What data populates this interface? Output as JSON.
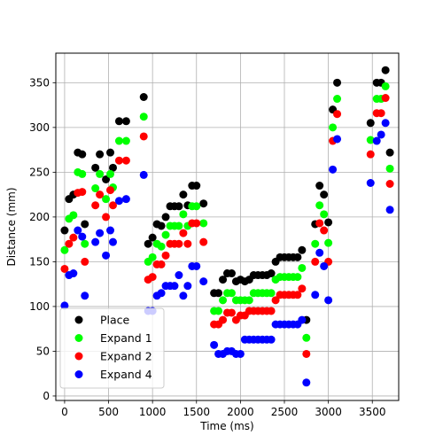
{
  "chart_data": {
    "type": "scatter",
    "xlabel": "Time (ms)",
    "ylabel": "Distance (mm)",
    "xlim": [
      -100,
      3800
    ],
    "ylim": [
      -5,
      383
    ],
    "xticks": [
      0,
      500,
      1000,
      1500,
      2000,
      2500,
      3000,
      3500
    ],
    "yticks": [
      0,
      50,
      100,
      150,
      200,
      250,
      300,
      350
    ],
    "grid": true,
    "legend_position": "lower-left",
    "series": [
      {
        "name": "Place",
        "color": "#000000",
        "points": [
          [
            0,
            185
          ],
          [
            50,
            220
          ],
          [
            100,
            225
          ],
          [
            150,
            272
          ],
          [
            200,
            270
          ],
          [
            230,
            192
          ],
          [
            350,
            255
          ],
          [
            400,
            270
          ],
          [
            470,
            242
          ],
          [
            520,
            272
          ],
          [
            550,
            255
          ],
          [
            620,
            307
          ],
          [
            700,
            307
          ],
          [
            900,
            334
          ],
          [
            950,
            170
          ],
          [
            1000,
            177
          ],
          [
            1050,
            192
          ],
          [
            1100,
            190
          ],
          [
            1150,
            200
          ],
          [
            1200,
            212
          ],
          [
            1250,
            212
          ],
          [
            1300,
            212
          ],
          [
            1350,
            225
          ],
          [
            1400,
            213
          ],
          [
            1450,
            235
          ],
          [
            1500,
            235
          ],
          [
            1580,
            215
          ],
          [
            1700,
            115
          ],
          [
            1750,
            115
          ],
          [
            1800,
            130
          ],
          [
            1850,
            137
          ],
          [
            1900,
            137
          ],
          [
            1950,
            128
          ],
          [
            2000,
            130
          ],
          [
            2050,
            128
          ],
          [
            2100,
            130
          ],
          [
            2150,
            135
          ],
          [
            2200,
            135
          ],
          [
            2250,
            135
          ],
          [
            2300,
            135
          ],
          [
            2350,
            137
          ],
          [
            2400,
            150
          ],
          [
            2450,
            155
          ],
          [
            2500,
            155
          ],
          [
            2550,
            155
          ],
          [
            2600,
            155
          ],
          [
            2650,
            155
          ],
          [
            2700,
            163
          ],
          [
            2750,
            85
          ],
          [
            2850,
            192
          ],
          [
            2900,
            235
          ],
          [
            2950,
            225
          ],
          [
            3000,
            194
          ],
          [
            3050,
            320
          ],
          [
            3100,
            350
          ],
          [
            3480,
            305
          ],
          [
            3550,
            350
          ],
          [
            3600,
            350
          ],
          [
            3650,
            364
          ],
          [
            3700,
            272
          ]
        ]
      },
      {
        "name": "Expand 1",
        "color": "#00ff00",
        "points": [
          [
            0,
            163
          ],
          [
            50,
            198
          ],
          [
            100,
            202
          ],
          [
            150,
            250
          ],
          [
            200,
            248
          ],
          [
            230,
            170
          ],
          [
            350,
            232
          ],
          [
            400,
            248
          ],
          [
            470,
            220
          ],
          [
            520,
            248
          ],
          [
            550,
            233
          ],
          [
            620,
            285
          ],
          [
            700,
            285
          ],
          [
            900,
            312
          ],
          [
            950,
            150
          ],
          [
            1000,
            155
          ],
          [
            1050,
            170
          ],
          [
            1100,
            167
          ],
          [
            1150,
            180
          ],
          [
            1200,
            190
          ],
          [
            1250,
            190
          ],
          [
            1300,
            190
          ],
          [
            1350,
            203
          ],
          [
            1400,
            190
          ],
          [
            1450,
            212
          ],
          [
            1500,
            212
          ],
          [
            1580,
            193
          ],
          [
            1700,
            95
          ],
          [
            1750,
            95
          ],
          [
            1800,
            107
          ],
          [
            1850,
            115
          ],
          [
            1900,
            115
          ],
          [
            1950,
            107
          ],
          [
            2000,
            107
          ],
          [
            2050,
            107
          ],
          [
            2100,
            107
          ],
          [
            2150,
            115
          ],
          [
            2200,
            115
          ],
          [
            2250,
            115
          ],
          [
            2300,
            115
          ],
          [
            2350,
            115
          ],
          [
            2400,
            130
          ],
          [
            2450,
            133
          ],
          [
            2500,
            133
          ],
          [
            2550,
            133
          ],
          [
            2600,
            133
          ],
          [
            2650,
            133
          ],
          [
            2700,
            143
          ],
          [
            2750,
            65
          ],
          [
            2850,
            170
          ],
          [
            2900,
            213
          ],
          [
            2950,
            203
          ],
          [
            3000,
            171
          ],
          [
            3050,
            300
          ],
          [
            3100,
            332
          ],
          [
            3480,
            286
          ],
          [
            3550,
            332
          ],
          [
            3600,
            332
          ],
          [
            3650,
            346
          ],
          [
            3700,
            254
          ]
        ]
      },
      {
        "name": "Expand 2",
        "color": "#ff0000",
        "points": [
          [
            0,
            142
          ],
          [
            50,
            170
          ],
          [
            100,
            177
          ],
          [
            150,
            227
          ],
          [
            200,
            228
          ],
          [
            230,
            150
          ],
          [
            350,
            213
          ],
          [
            400,
            225
          ],
          [
            470,
            200
          ],
          [
            520,
            230
          ],
          [
            550,
            213
          ],
          [
            620,
            263
          ],
          [
            700,
            263
          ],
          [
            900,
            290
          ],
          [
            950,
            130
          ],
          [
            1000,
            133
          ],
          [
            1050,
            147
          ],
          [
            1100,
            147
          ],
          [
            1150,
            157
          ],
          [
            1200,
            170
          ],
          [
            1250,
            170
          ],
          [
            1300,
            170
          ],
          [
            1350,
            182
          ],
          [
            1400,
            170
          ],
          [
            1450,
            193
          ],
          [
            1500,
            193
          ],
          [
            1580,
            172
          ],
          [
            1700,
            80
          ],
          [
            1750,
            80
          ],
          [
            1800,
            85
          ],
          [
            1850,
            93
          ],
          [
            1900,
            93
          ],
          [
            1950,
            85
          ],
          [
            2000,
            90
          ],
          [
            2050,
            90
          ],
          [
            2100,
            95
          ],
          [
            2150,
            95
          ],
          [
            2200,
            95
          ],
          [
            2250,
            95
          ],
          [
            2300,
            95
          ],
          [
            2350,
            95
          ],
          [
            2400,
            107
          ],
          [
            2450,
            113
          ],
          [
            2500,
            113
          ],
          [
            2550,
            113
          ],
          [
            2600,
            113
          ],
          [
            2650,
            113
          ],
          [
            2700,
            120
          ],
          [
            2750,
            47
          ],
          [
            2850,
            150
          ],
          [
            2900,
            193
          ],
          [
            2950,
            185
          ],
          [
            3000,
            150
          ],
          [
            3050,
            285
          ],
          [
            3100,
            315
          ],
          [
            3480,
            270
          ],
          [
            3550,
            316
          ],
          [
            3600,
            316
          ],
          [
            3650,
            333
          ],
          [
            3700,
            237
          ]
        ]
      },
      {
        "name": "Expand 4",
        "color": "#0000ff",
        "points": [
          [
            0,
            101
          ],
          [
            50,
            135
          ],
          [
            100,
            137
          ],
          [
            150,
            185
          ],
          [
            200,
            178
          ],
          [
            230,
            112
          ],
          [
            350,
            172
          ],
          [
            400,
            182
          ],
          [
            470,
            157
          ],
          [
            520,
            185
          ],
          [
            550,
            172
          ],
          [
            620,
            218
          ],
          [
            700,
            220
          ],
          [
            900,
            247
          ],
          [
            950,
            95
          ],
          [
            1000,
            95
          ],
          [
            1050,
            112
          ],
          [
            1100,
            115
          ],
          [
            1150,
            123
          ],
          [
            1200,
            123
          ],
          [
            1250,
            123
          ],
          [
            1300,
            135
          ],
          [
            1350,
            112
          ],
          [
            1400,
            123
          ],
          [
            1450,
            145
          ],
          [
            1500,
            145
          ],
          [
            1580,
            128
          ],
          [
            1700,
            57
          ],
          [
            1750,
            47
          ],
          [
            1800,
            47
          ],
          [
            1850,
            50
          ],
          [
            1900,
            50
          ],
          [
            1950,
            47
          ],
          [
            2000,
            47
          ],
          [
            2050,
            63
          ],
          [
            2100,
            63
          ],
          [
            2150,
            63
          ],
          [
            2200,
            63
          ],
          [
            2250,
            63
          ],
          [
            2300,
            63
          ],
          [
            2350,
            63
          ],
          [
            2400,
            80
          ],
          [
            2450,
            80
          ],
          [
            2500,
            80
          ],
          [
            2550,
            80
          ],
          [
            2600,
            80
          ],
          [
            2650,
            80
          ],
          [
            2700,
            85
          ],
          [
            2750,
            15
          ],
          [
            2850,
            113
          ],
          [
            2900,
            160
          ],
          [
            2950,
            145
          ],
          [
            3000,
            107
          ],
          [
            3050,
            253
          ],
          [
            3100,
            287
          ],
          [
            3480,
            238
          ],
          [
            3550,
            285
          ],
          [
            3600,
            292
          ],
          [
            3650,
            305
          ],
          [
            3700,
            208
          ]
        ]
      }
    ]
  }
}
